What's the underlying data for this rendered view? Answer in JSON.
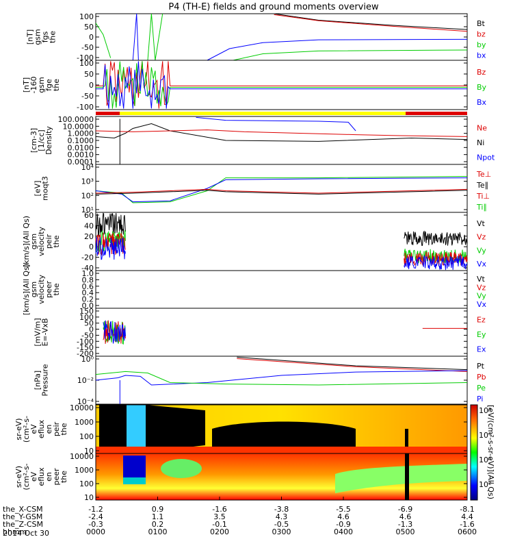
{
  "title": "P4 (TH-E) fields and ground moments overview",
  "colors": {
    "black": "#000000",
    "red": "#dd0000",
    "green": "#00cc00",
    "blue": "#0000ff",
    "yellow": "#ffff00"
  },
  "footer_date": "2014 Oct 30",
  "xaxis": {
    "row_labels": [
      "the_X-CSM",
      "the_Y-GSM",
      "the_Z-CSM",
      "hhmm"
    ],
    "ticks": [
      {
        "x": "-1.2",
        "y": "-2.4",
        "z": "-0.3",
        "t": "0000"
      },
      {
        "x": "0.9",
        "y": "1.1",
        "z": "0.2",
        "t": "0100"
      },
      {
        "x": "-1.6",
        "y": "3.5",
        "z": "-0.1",
        "t": "0200"
      },
      {
        "x": "-3.8",
        "y": "4.3",
        "z": "-0.5",
        "t": "0300"
      },
      {
        "x": "-5.5",
        "y": "4.6",
        "z": "-0.9",
        "t": "0400"
      },
      {
        "x": "-6.9",
        "y": "4.6",
        "z": "-1.3",
        "t": "0500"
      },
      {
        "x": "-8.1",
        "y": "4.4",
        "z": "-1.6",
        "t": "0600"
      }
    ]
  },
  "chart_data": [
    {
      "type": "line",
      "ylabel": [
        "the",
        "fgs",
        "gsm",
        "[nT]"
      ],
      "ylim": [
        -100,
        100
      ],
      "yticks": [
        "100",
        "50",
        "0",
        "-50",
        "-100"
      ],
      "series": [
        {
          "name": "Bt",
          "color": "#000000"
        },
        {
          "name": "bz",
          "color": "#dd0000"
        },
        {
          "name": "by",
          "color": "#00cc00"
        },
        {
          "name": "bx",
          "color": "#0000ff"
        }
      ]
    },
    {
      "type": "line",
      "ylabel": [
        "the",
        "fge",
        "gsm",
        "-160",
        "[nT]"
      ],
      "ylim": [
        -120,
        120
      ],
      "yticks": [
        "100",
        "50",
        "0",
        "-50",
        "-100"
      ],
      "series": [
        {
          "name": "Bz",
          "color": "#dd0000"
        },
        {
          "name": "By",
          "color": "#00cc00"
        },
        {
          "name": "Bx",
          "color": "#0000ff"
        }
      ]
    },
    {
      "type": "line",
      "ylabel": [
        "Density",
        "[1/cc]",
        "[cm-3]"
      ],
      "scale": "log",
      "yticks": [
        "100.0000",
        "10.0000",
        "1.0000",
        "0.1000",
        "0.0100",
        "0.0010",
        "0.0001"
      ],
      "series": [
        {
          "name": "Ne",
          "color": "#dd0000"
        },
        {
          "name": "Ni",
          "color": "#000000"
        },
        {
          "name": "Npot",
          "color": "#0000ff"
        }
      ]
    },
    {
      "type": "line",
      "ylabel": [
        "moqt3",
        "[eV]"
      ],
      "scale": "log",
      "yticks": [
        "10⁴",
        "10³",
        "10²",
        "10¹"
      ],
      "series": [
        {
          "name": "Te⊥",
          "color": "#dd0000"
        },
        {
          "name": "Te∥",
          "color": "#000000"
        },
        {
          "name": "Ti⊥",
          "color": "#dd0000"
        },
        {
          "name": "Ti∥",
          "color": "#00cc00"
        }
      ]
    },
    {
      "type": "line",
      "ylabel": [
        "the",
        "peir",
        "velocity",
        "gsm",
        "[km/s](All Qs)"
      ],
      "ylim": [
        -40,
        60
      ],
      "yticks": [
        "60",
        "40",
        "20",
        "0",
        "-20",
        "-40"
      ],
      "series": [
        {
          "name": "Vt",
          "color": "#000000"
        },
        {
          "name": "Vz",
          "color": "#dd0000"
        },
        {
          "name": "Vy",
          "color": "#00cc00"
        },
        {
          "name": "Vx",
          "color": "#0000ff"
        }
      ]
    },
    {
      "type": "line",
      "ylabel": [
        "the",
        "peer",
        "velocity",
        "gsm",
        "[km/s](All Qs)"
      ],
      "ylim": [
        0,
        1
      ],
      "yticks": [
        "1.0",
        "0.8",
        "0.6",
        "0.4",
        "0.2",
        "0.0"
      ],
      "series": [
        {
          "name": "Vt",
          "color": "#000000"
        },
        {
          "name": "Vz",
          "color": "#dd0000"
        },
        {
          "name": "Vy",
          "color": "#00cc00"
        },
        {
          "name": "Vx",
          "color": "#0000ff"
        }
      ]
    },
    {
      "type": "line",
      "ylabel": [
        "E=-VxB",
        "[mV/m]"
      ],
      "ylim": [
        -200,
        150
      ],
      "yticks": [
        "150",
        "100",
        "50",
        "0",
        "-50",
        "-100",
        "-150",
        "-200"
      ],
      "series": [
        {
          "name": "Ez",
          "color": "#dd0000"
        },
        {
          "name": "Ey",
          "color": "#00cc00"
        },
        {
          "name": "Ex",
          "color": "#0000ff"
        }
      ]
    },
    {
      "type": "line",
      "ylabel": [
        "Pressure",
        "[nPa]"
      ],
      "scale": "log",
      "yticks": [
        "10⁰",
        "10⁻²",
        "10⁻⁴"
      ],
      "series": [
        {
          "name": "Pt",
          "color": "#000000"
        },
        {
          "name": "Pb",
          "color": "#dd0000"
        },
        {
          "name": "Pe",
          "color": "#00cc00"
        },
        {
          "name": "Pi",
          "color": "#0000ff"
        }
      ]
    },
    {
      "type": "heatmap",
      "ylabel": [
        "the",
        "peir",
        "en",
        "eflux",
        "eV",
        "(cm²-s-",
        "sr-eV)"
      ],
      "yticks": [
        "10000",
        "1000",
        "100",
        "10"
      ]
    },
    {
      "type": "heatmap",
      "ylabel": [
        "the",
        "peer",
        "en",
        "eflux",
        "eV",
        "(cm²-s-",
        "sr-eV)"
      ],
      "yticks": [
        "10000",
        "1000",
        "100",
        "10"
      ]
    }
  ],
  "colorbar": {
    "label": "[eV/(cm²-s-sr-eV)](All Qs)",
    "ticks": [
      "10⁸",
      "10⁶",
      "10⁴",
      "10²"
    ]
  }
}
